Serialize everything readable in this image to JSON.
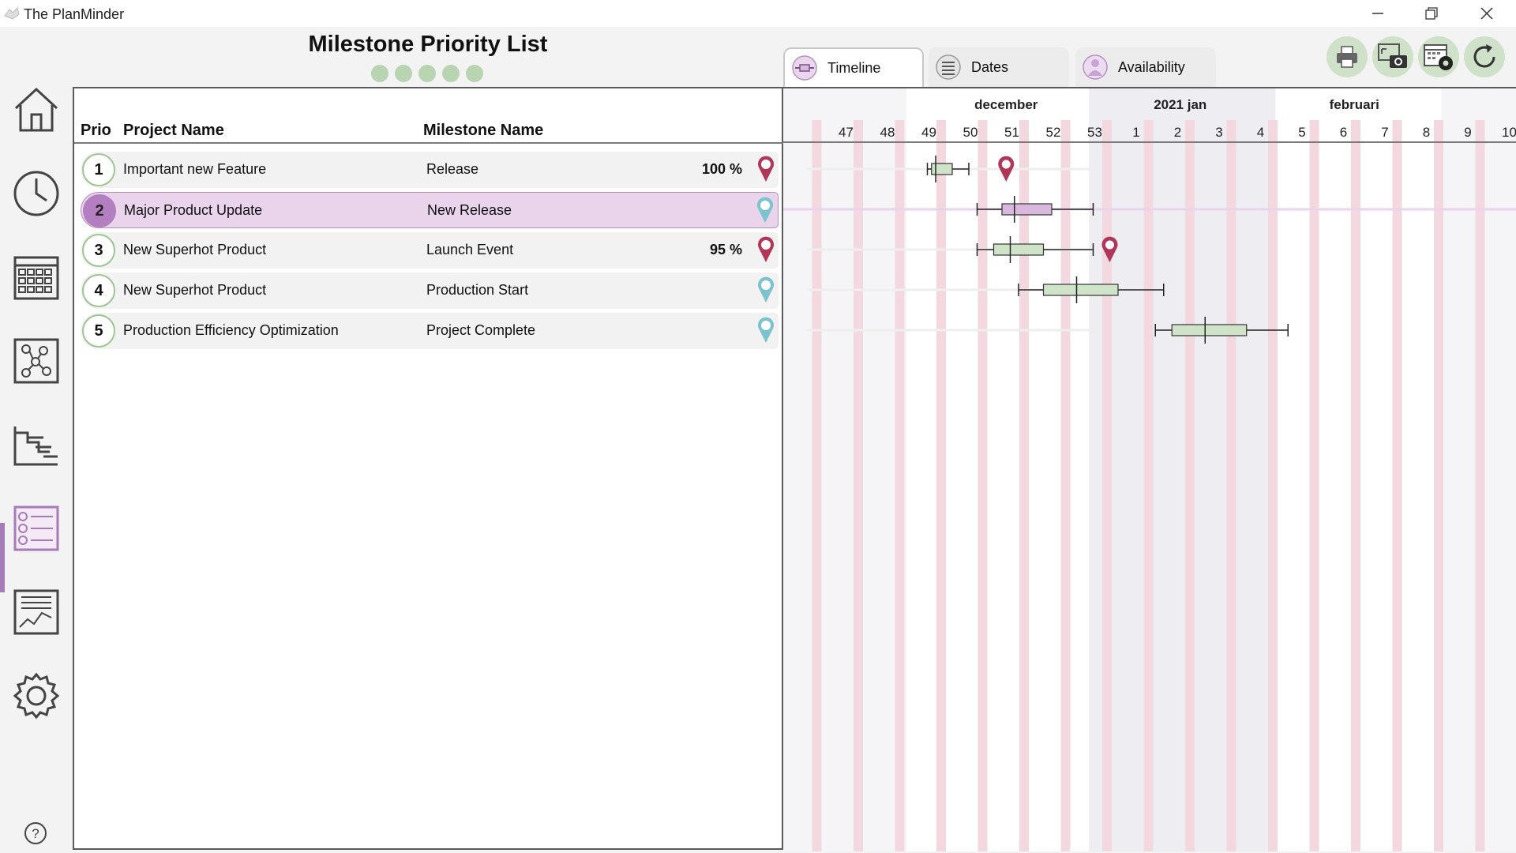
{
  "window": {
    "title": "The PlanMinder"
  },
  "sidebar": {
    "items": [
      {
        "name": "home"
      },
      {
        "name": "clock"
      },
      {
        "name": "calendar"
      },
      {
        "name": "network"
      },
      {
        "name": "gantt"
      },
      {
        "name": "priority-list"
      },
      {
        "name": "report"
      },
      {
        "name": "settings"
      }
    ],
    "help_label": "?"
  },
  "header": {
    "title": "Milestone Priority List",
    "dots_color": "#b9d4b1"
  },
  "list": {
    "columns": {
      "prio": "Prio",
      "project": "Project Name",
      "milestone": "Milestone Name"
    },
    "rows": [
      {
        "prio": "1",
        "project": "Important new Feature",
        "milestone": "Release",
        "percent": "100 %",
        "pin": "red"
      },
      {
        "prio": "2",
        "project": "Major Product Update",
        "milestone": "New Release",
        "percent": "",
        "pin": "blue",
        "selected": true
      },
      {
        "prio": "3",
        "project": "New Superhot Product",
        "milestone": "Launch Event",
        "percent": "95 %",
        "pin": "red"
      },
      {
        "prio": "4",
        "project": "New Superhot Product",
        "milestone": "Production Start",
        "percent": "",
        "pin": "blue"
      },
      {
        "prio": "5",
        "project": "Production Efficiency Optimization",
        "milestone": "Project Complete",
        "percent": "",
        "pin": "blue"
      }
    ]
  },
  "tabs": [
    {
      "label": "Timeline",
      "active": true
    },
    {
      "label": "Dates"
    },
    {
      "label": "Availability"
    }
  ],
  "toolbar": [
    "print-icon",
    "snapshot-icon",
    "calendar-settings-icon",
    "refresh-icon"
  ],
  "timeline": {
    "months": [
      "december",
      "2021 jan",
      "februari"
    ],
    "weeks": [
      "47",
      "48",
      "49",
      "50",
      "51",
      "52",
      "53",
      "1",
      "2",
      "3",
      "4",
      "5",
      "6",
      "7",
      "8",
      "9",
      "10"
    ],
    "colors": {
      "pin_red": "#b0365a",
      "pin_blue": "#7cc3cf",
      "box_green": "#cfe3c8",
      "box_purple": "#d9b8dd",
      "stripe": "#f4d8df"
    },
    "bars": [
      {
        "row": 1,
        "min_week": 49.0,
        "q1": 49.1,
        "median": 49.2,
        "q3": 49.6,
        "max_week": 50.0,
        "pin_week": 50.9,
        "pin": "red"
      },
      {
        "row": 2,
        "min_week": 50.2,
        "q1": 50.8,
        "median": 51.1,
        "q3": 52.0,
        "max_week": 53.0,
        "pin": "blue"
      },
      {
        "row": 3,
        "min_week": 50.2,
        "q1": 50.6,
        "median": 51.0,
        "q3": 51.8,
        "max_week": 53.0,
        "pin_week": 53.4,
        "pin": "red"
      },
      {
        "row": 4,
        "min_week": 51.2,
        "q1": 51.8,
        "median": 52.6,
        "q3": 53.6,
        "max_week": 54.7,
        "pin": "blue"
      },
      {
        "row": 5,
        "min_week": 54.5,
        "q1": 54.9,
        "median": 55.7,
        "q3": 56.7,
        "max_week": 57.7,
        "pin": "blue"
      }
    ]
  }
}
